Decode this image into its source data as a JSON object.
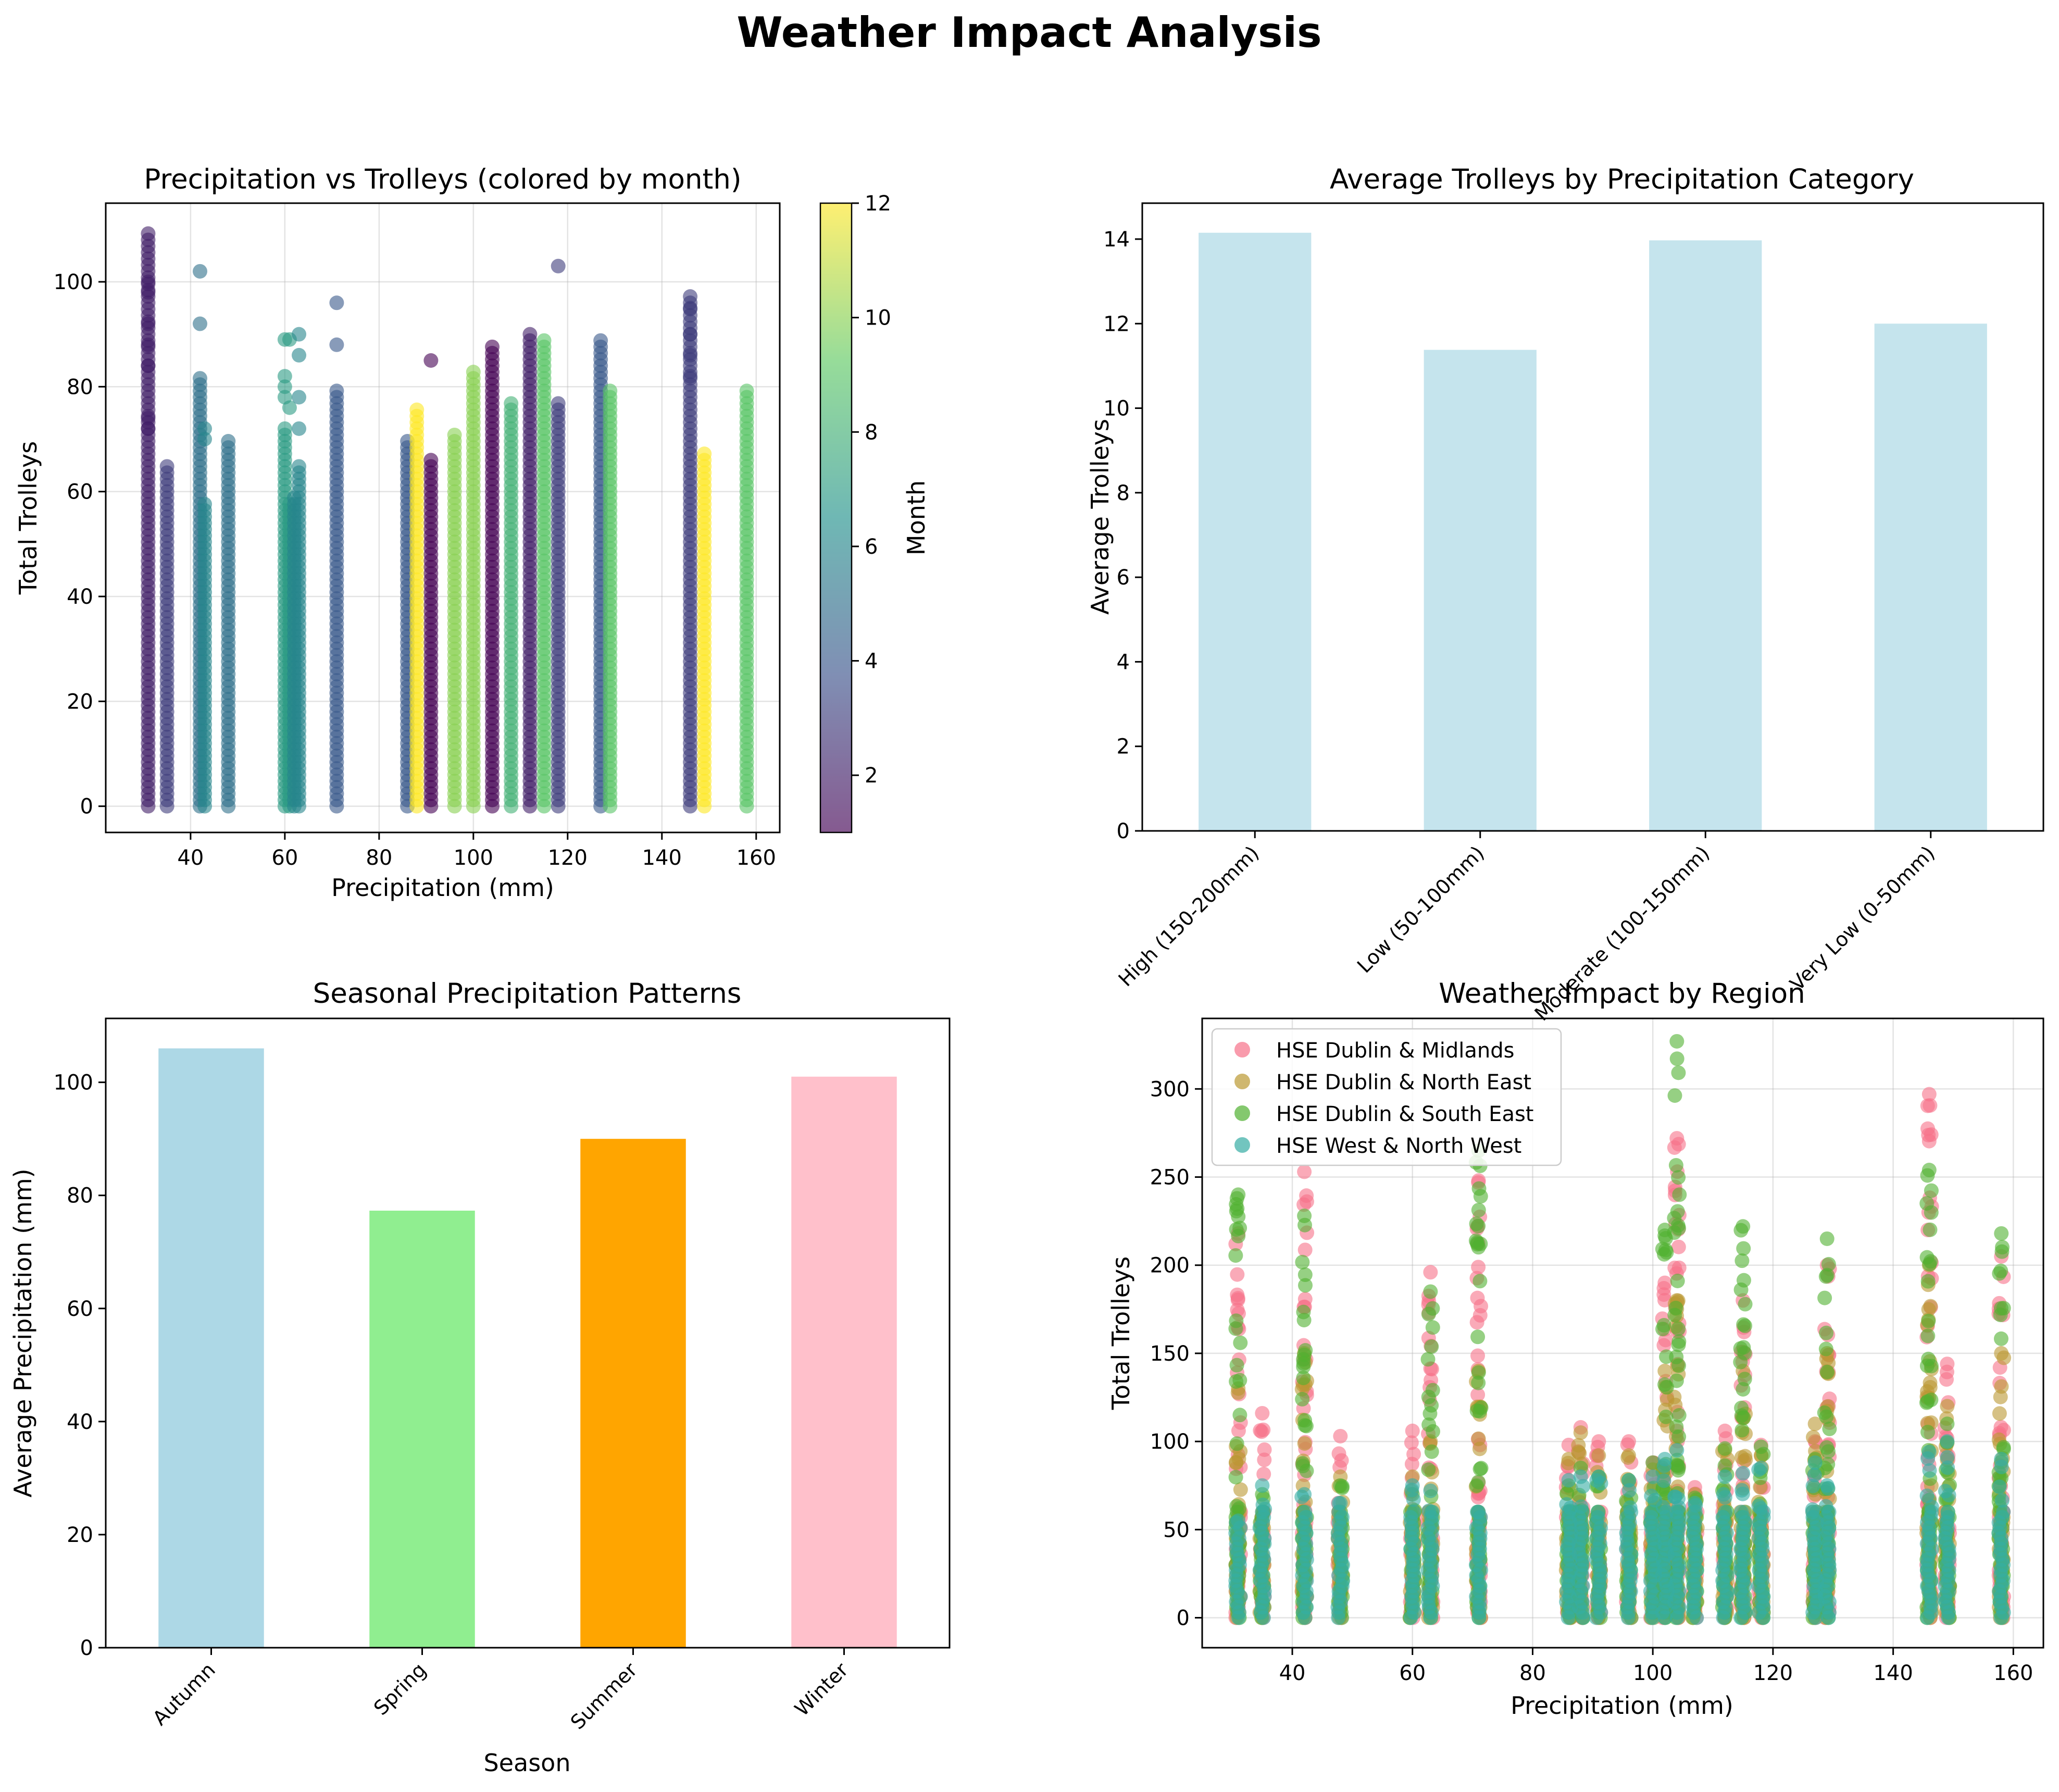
{
  "figure": {
    "title": "Weather Impact Analysis"
  },
  "chart_data": [
    {
      "type": "scatter",
      "title": "Precipitation vs Trolleys (colored by month)",
      "xlabel": "Precipitation (mm)",
      "ylabel": "Total Trolleys",
      "xlim": [
        22,
        165
      ],
      "ylim": [
        -5,
        115
      ],
      "xticks": [
        40,
        60,
        80,
        100,
        120,
        140,
        160
      ],
      "yticks": [
        0,
        20,
        40,
        60,
        80,
        100
      ],
      "grid": true,
      "colormap": "viridis",
      "colorbar": {
        "label": "Month",
        "range": [
          1,
          12
        ],
        "ticks": [
          2,
          4,
          6,
          8,
          10,
          12
        ]
      },
      "columns": [
        {
          "x": 31,
          "month": 2,
          "max": 110,
          "extra": [
            100,
            98,
            92,
            88,
            84,
            74,
            72
          ]
        },
        {
          "x": 35,
          "month": 3,
          "max": 66,
          "extra": []
        },
        {
          "x": 42,
          "month": 5,
          "max": 82,
          "extra": [
            102,
            92
          ]
        },
        {
          "x": 43,
          "month": 6,
          "max": 58,
          "extra": [
            72,
            70
          ]
        },
        {
          "x": 48,
          "month": 5,
          "max": 70,
          "extra": []
        },
        {
          "x": 60,
          "month": 7,
          "max": 73,
          "extra": [
            89,
            82,
            80,
            78
          ]
        },
        {
          "x": 61,
          "month": 7,
          "max": 58,
          "extra": [
            89,
            76
          ]
        },
        {
          "x": 62,
          "month": 6,
          "max": 60,
          "extra": []
        },
        {
          "x": 63,
          "month": 6,
          "max": 65,
          "extra": [
            90,
            86,
            78,
            72
          ]
        },
        {
          "x": 71,
          "month": 4,
          "max": 80,
          "extra": [
            96,
            88
          ]
        },
        {
          "x": 86,
          "month": 4,
          "max": 70,
          "extra": []
        },
        {
          "x": 88,
          "month": 12,
          "max": 76,
          "extra": []
        },
        {
          "x": 91,
          "month": 1,
          "max": 67,
          "extra": [
            85
          ]
        },
        {
          "x": 96,
          "month": 10,
          "max": 71,
          "extra": []
        },
        {
          "x": 100,
          "month": 10,
          "max": 83,
          "extra": []
        },
        {
          "x": 104,
          "month": 1,
          "max": 88,
          "extra": []
        },
        {
          "x": 108,
          "month": 8,
          "max": 77,
          "extra": []
        },
        {
          "x": 112,
          "month": 2,
          "max": 91,
          "extra": []
        },
        {
          "x": 115,
          "month": 9,
          "max": 90,
          "extra": []
        },
        {
          "x": 118,
          "month": 3,
          "max": 77,
          "extra": [
            103
          ]
        },
        {
          "x": 127,
          "month": 4,
          "max": 89,
          "extra": []
        },
        {
          "x": 129,
          "month": 9,
          "max": 80,
          "extra": []
        },
        {
          "x": 146,
          "month": 3,
          "max": 98,
          "extra": [
            95,
            90,
            86,
            82
          ]
        },
        {
          "x": 149,
          "month": 12,
          "max": 68,
          "extra": []
        },
        {
          "x": 158,
          "month": 9,
          "max": 80,
          "extra": []
        }
      ]
    },
    {
      "type": "bar",
      "title": "Average Trolleys by Precipitation Category",
      "xlabel": "",
      "ylabel": "Average Trolleys",
      "categories": [
        "High (150-200mm)",
        "Low (50-100mm)",
        "Moderate (100-150mm)",
        "Very Low (0-50mm)"
      ],
      "values": [
        14.15,
        11.38,
        13.97,
        12.0
      ],
      "ylim": [
        0,
        14.85
      ],
      "yticks": [
        0,
        2,
        4,
        6,
        8,
        10,
        12,
        14
      ],
      "color": "#add8e6"
    },
    {
      "type": "bar",
      "title": "Seasonal Precipitation Patterns",
      "xlabel": "Season",
      "ylabel": "Average Precipitation (mm)",
      "categories": [
        "Autumn",
        "Spring",
        "Summer",
        "Winter"
      ],
      "values": [
        106,
        77.3,
        90,
        101
      ],
      "colors": [
        "#add8e6",
        "#90ee90",
        "#ffa500",
        "#ffc0cb"
      ],
      "ylim": [
        0,
        111.3
      ],
      "yticks": [
        0,
        20,
        40,
        60,
        80,
        100
      ]
    },
    {
      "type": "scatter",
      "title": "Weather Impact by Region",
      "xlabel": "Precipitation (mm)",
      "ylabel": "Total Trolleys",
      "xlim": [
        25,
        165
      ],
      "ylim": [
        -17,
        340
      ],
      "xticks": [
        40,
        60,
        80,
        100,
        120,
        140,
        160
      ],
      "yticks": [
        0,
        50,
        100,
        150,
        200,
        250,
        300
      ],
      "grid": true,
      "legend": "top-left",
      "series": [
        {
          "name": "HSE Dublin & Midlands",
          "color": "#f77189",
          "columns": [
            [
              31,
              218
            ],
            [
              35,
              116
            ],
            [
              42,
              253
            ],
            [
              48,
              103
            ],
            [
              60,
              106
            ],
            [
              63,
              196
            ],
            [
              71,
              248
            ],
            [
              86,
              98
            ],
            [
              88,
              108
            ],
            [
              91,
              100
            ],
            [
              96,
              100
            ],
            [
              100,
              88
            ],
            [
              102,
              190
            ],
            [
              104,
              272
            ],
            [
              107,
              74
            ],
            [
              112,
              106
            ],
            [
              115,
              180
            ],
            [
              118,
              98
            ],
            [
              127,
              100
            ],
            [
              129,
              200
            ],
            [
              146,
              297
            ],
            [
              149,
              144
            ],
            [
              158,
              205
            ]
          ]
        },
        {
          "name": "HSE Dublin & North East",
          "color": "#bb9832",
          "columns": [
            [
              31,
              130
            ],
            [
              35,
              60
            ],
            [
              42,
              150
            ],
            [
              48,
              80
            ],
            [
              60,
              80
            ],
            [
              63,
              100
            ],
            [
              71,
              140
            ],
            [
              86,
              90
            ],
            [
              88,
              105
            ],
            [
              91,
              92
            ],
            [
              96,
              92
            ],
            [
              100,
              84
            ],
            [
              102,
              140
            ],
            [
              104,
              180
            ],
            [
              107,
              70
            ],
            [
              112,
              95
            ],
            [
              115,
              140
            ],
            [
              118,
              92
            ],
            [
              127,
              110
            ],
            [
              129,
              150
            ],
            [
              146,
              200
            ],
            [
              149,
              120
            ],
            [
              158,
              150
            ]
          ]
        },
        {
          "name": "HSE Dublin & South East",
          "color": "#50b131",
          "columns": [
            [
              31,
              240
            ],
            [
              35,
              70
            ],
            [
              42,
              228
            ],
            [
              48,
              75
            ],
            [
              60,
              70
            ],
            [
              63,
              185
            ],
            [
              71,
              265
            ],
            [
              86,
              75
            ],
            [
              88,
              85
            ],
            [
              91,
              80
            ],
            [
              96,
              78
            ],
            [
              100,
              88
            ],
            [
              102,
              220
            ],
            [
              104,
              327
            ],
            [
              107,
              68
            ],
            [
              112,
              96
            ],
            [
              115,
              222
            ],
            [
              118,
              97
            ],
            [
              127,
              90
            ],
            [
              129,
              215
            ],
            [
              146,
              254
            ],
            [
              149,
              110
            ],
            [
              158,
              218
            ]
          ]
        },
        {
          "name": "HSE West & North West",
          "color": "#36ada4",
          "columns": [
            [
              31,
              55
            ],
            [
              35,
              75
            ],
            [
              42,
              70
            ],
            [
              48,
              65
            ],
            [
              60,
              75
            ],
            [
              63,
              72
            ],
            [
              71,
              60
            ],
            [
              86,
              78
            ],
            [
              88,
              80
            ],
            [
              91,
              80
            ],
            [
              96,
              78
            ],
            [
              100,
              80
            ],
            [
              102,
              90
            ],
            [
              104,
              95
            ],
            [
              107,
              65
            ],
            [
              112,
              80
            ],
            [
              115,
              82
            ],
            [
              118,
              85
            ],
            [
              127,
              88
            ],
            [
              129,
              75
            ],
            [
              146,
              94
            ],
            [
              149,
              100
            ],
            [
              158,
              90
            ]
          ]
        }
      ]
    }
  ]
}
